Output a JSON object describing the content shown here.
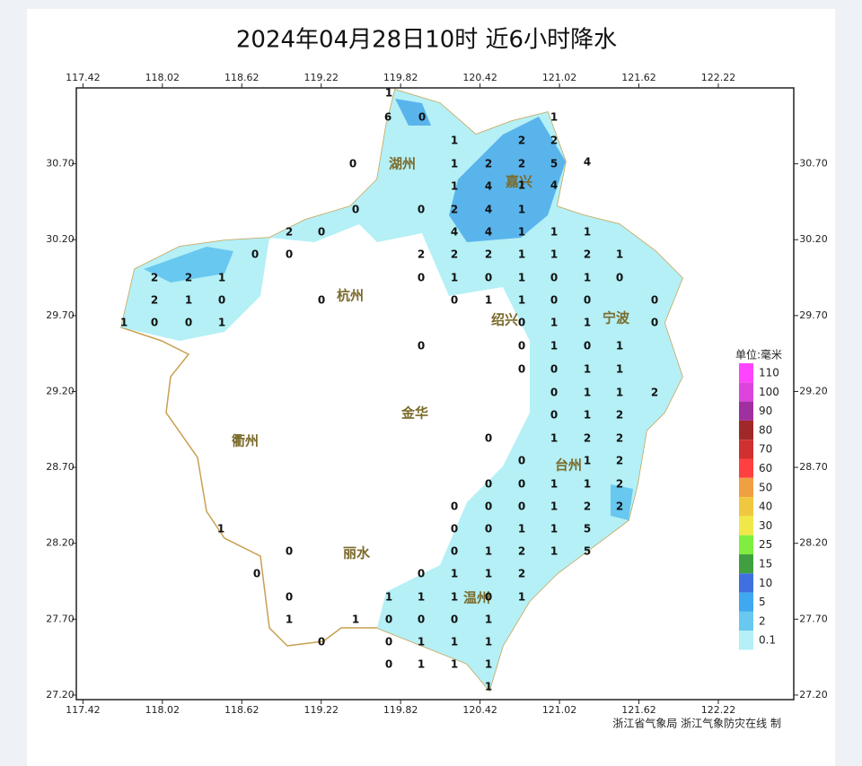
{
  "header": {
    "title": "2024年04月28日10时  近6小时降水"
  },
  "map": {
    "lonlim": [
      117.37,
      122.79
    ],
    "latlim": [
      27.17,
      31.2
    ],
    "lon_ticks": [
      117.42,
      118.02,
      118.62,
      119.22,
      119.82,
      120.42,
      121.02,
      121.62,
      122.22
    ],
    "lat_ticks": [
      {
        "value": 30.7,
        "label": "30.70"
      },
      {
        "value": 30.2,
        "label": "30.20"
      },
      {
        "value": 29.7,
        "label": "29.70"
      },
      {
        "value": 29.2,
        "label": "29.20"
      },
      {
        "value": 28.7,
        "label": "28.70"
      },
      {
        "value": 28.2,
        "label": "28.20"
      },
      {
        "value": 27.7,
        "label": "27.70"
      },
      {
        "value": 27.2,
        "label": "27.20"
      }
    ],
    "cities": [
      "湖州",
      "嘉兴",
      "杭州",
      "绍兴",
      "宁波",
      "金华",
      "衢州",
      "台州",
      "丽水",
      "温州"
    ],
    "stations": [
      1,
      6,
      0,
      1,
      1,
      2,
      2,
      0,
      1,
      2,
      2,
      5,
      4,
      1,
      4,
      1,
      4,
      0,
      0,
      2,
      4,
      1,
      2,
      0,
      4,
      4,
      1,
      1,
      1,
      0,
      0,
      2,
      2,
      2,
      1,
      1,
      2,
      1,
      2,
      2,
      1,
      0,
      1,
      0,
      1,
      0,
      1,
      0,
      2,
      1,
      0,
      0,
      0,
      1,
      1,
      0,
      0,
      0,
      1,
      0,
      0,
      1,
      0,
      1,
      1,
      0,
      0,
      0,
      1,
      0,
      1,
      0,
      0,
      1,
      1,
      0,
      1,
      1,
      2,
      0,
      1,
      2,
      0,
      1,
      2,
      2,
      0,
      1,
      2,
      0,
      0,
      1,
      1,
      2,
      0,
      0,
      0,
      1,
      2,
      2,
      1,
      0,
      0,
      1,
      1,
      5,
      0,
      0,
      1,
      2,
      1,
      5,
      0,
      0,
      1,
      1,
      2,
      0,
      1,
      1,
      1,
      0,
      1,
      1,
      1,
      0,
      0,
      0,
      1,
      0,
      0,
      1,
      1,
      1,
      0,
      1,
      1,
      1,
      1
    ]
  },
  "legend": {
    "title": "单位:毫米",
    "levels": [
      {
        "value": 110,
        "color": "#ff44ff"
      },
      {
        "value": 100,
        "color": "#dd44dd"
      },
      {
        "value": 90,
        "color": "#a030a0"
      },
      {
        "value": 80,
        "color": "#a02828"
      },
      {
        "value": 70,
        "color": "#d03030"
      },
      {
        "value": 60,
        "color": "#ff4040"
      },
      {
        "value": 50,
        "color": "#f0a040"
      },
      {
        "value": 40,
        "color": "#f0c840"
      },
      {
        "value": 30,
        "color": "#f0e848"
      },
      {
        "value": 25,
        "color": "#80ee40"
      },
      {
        "value": 15,
        "color": "#40a040"
      },
      {
        "value": 10,
        "color": "#4070e0"
      },
      {
        "value": 5,
        "color": "#40a8f0"
      },
      {
        "value": 2,
        "color": "#68c8f0"
      },
      {
        "value": 0.1,
        "color": "#b4f0f6"
      }
    ]
  },
  "credit": "浙江省气象局   浙江气象防灾在线  制"
}
